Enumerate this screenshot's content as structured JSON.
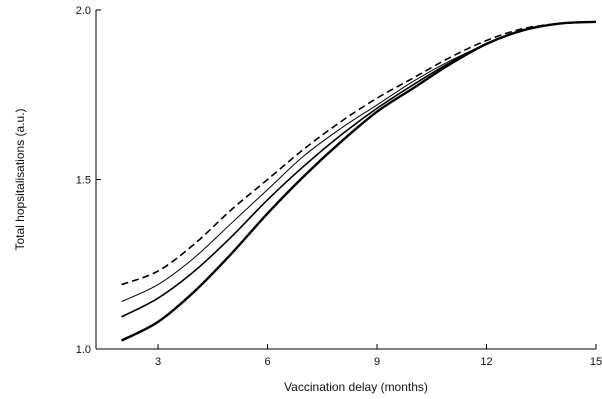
{
  "chart_data": {
    "type": "line",
    "title": "",
    "xlabel": "Vaccination delay (months)",
    "ylabel": "Total hopsitalisations (a.u.)",
    "xlim": [
      1.3,
      15
    ],
    "ylim": [
      1.0,
      2.0
    ],
    "xticks": [
      3,
      6,
      9,
      12,
      15
    ],
    "yticks": [
      1.0,
      1.5,
      2.0
    ],
    "xtick_labels": [
      "3",
      "6",
      "9",
      "12",
      "15"
    ],
    "ytick_labels": [
      "1.0",
      "1.5",
      "2.0"
    ],
    "grid": false,
    "legend": "none",
    "series": [
      {
        "style": "dashed",
        "x": [
          2,
          3,
          4,
          5,
          6,
          7,
          8,
          9,
          10,
          11,
          12,
          13,
          14,
          15
        ],
        "values": [
          1.19,
          1.23,
          1.31,
          1.41,
          1.5,
          1.59,
          1.67,
          1.74,
          1.8,
          1.86,
          1.91,
          1.945,
          1.96,
          1.965
        ]
      },
      {
        "style": "thin",
        "x": [
          2,
          3,
          4,
          5,
          6,
          7,
          8,
          9,
          10,
          11,
          12,
          13,
          14,
          15
        ],
        "values": [
          1.14,
          1.19,
          1.27,
          1.37,
          1.47,
          1.57,
          1.65,
          1.72,
          1.79,
          1.85,
          1.9,
          1.94,
          1.96,
          1.965
        ]
      },
      {
        "style": "medium",
        "x": [
          2,
          3,
          4,
          5,
          6,
          7,
          8,
          9,
          10,
          11,
          12,
          13,
          14,
          15
        ],
        "values": [
          1.095,
          1.15,
          1.23,
          1.33,
          1.44,
          1.54,
          1.63,
          1.71,
          1.78,
          1.845,
          1.9,
          1.94,
          1.96,
          1.965
        ]
      },
      {
        "style": "thick",
        "x": [
          2,
          3,
          4,
          5,
          6,
          7,
          8,
          9,
          10,
          11,
          12,
          13,
          14,
          15
        ],
        "values": [
          1.025,
          1.08,
          1.17,
          1.28,
          1.4,
          1.51,
          1.61,
          1.7,
          1.77,
          1.84,
          1.9,
          1.94,
          1.96,
          1.965
        ]
      }
    ]
  }
}
